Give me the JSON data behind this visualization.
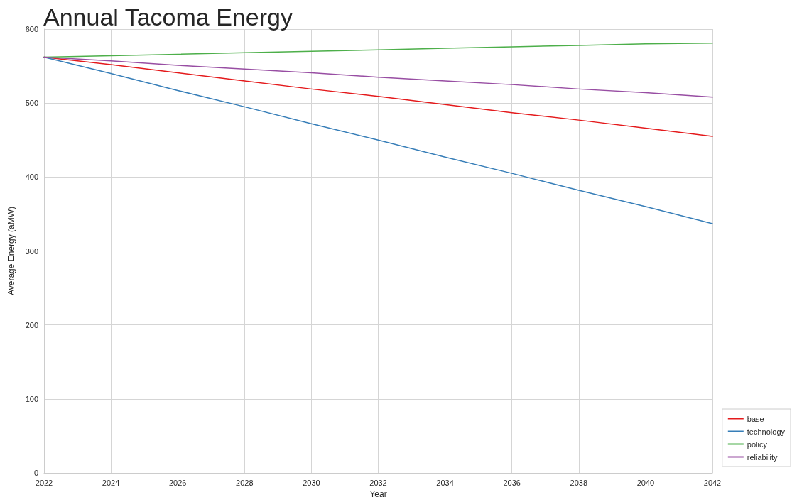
{
  "chart_data": {
    "type": "line",
    "title": "Annual Tacoma Energy",
    "xlabel": "Year",
    "ylabel": "Average Energy (aMW)",
    "x": [
      2022,
      2024,
      2026,
      2028,
      2030,
      2032,
      2034,
      2036,
      2038,
      2040,
      2042
    ],
    "series": [
      {
        "name": "base",
        "color": "#e41a1c",
        "values": [
          562,
          552,
          541,
          530,
          519,
          509,
          498,
          487,
          477,
          466,
          455
        ]
      },
      {
        "name": "technology",
        "color": "#377eb8",
        "values": [
          562,
          540,
          517,
          495,
          472,
          450,
          427,
          405,
          382,
          360,
          337
        ]
      },
      {
        "name": "policy",
        "color": "#4daf4a",
        "values": [
          562,
          564,
          566,
          568,
          570,
          572,
          574,
          576,
          578,
          580,
          581
        ]
      },
      {
        "name": "reliability",
        "color": "#984ea3",
        "values": [
          562,
          557,
          551,
          546,
          541,
          535,
          530,
          525,
          519,
          514,
          508
        ]
      }
    ],
    "xlim": [
      2022,
      2042
    ],
    "xticks": [
      2022,
      2024,
      2026,
      2028,
      2030,
      2032,
      2034,
      2036,
      2038,
      2040,
      2042
    ],
    "ylim": [
      0,
      600
    ],
    "yticks": [
      0,
      100,
      200,
      300,
      400,
      500,
      600
    ],
    "grid": true,
    "legend": "bottom right",
    "marker": "none",
    "line_style": "solid"
  }
}
